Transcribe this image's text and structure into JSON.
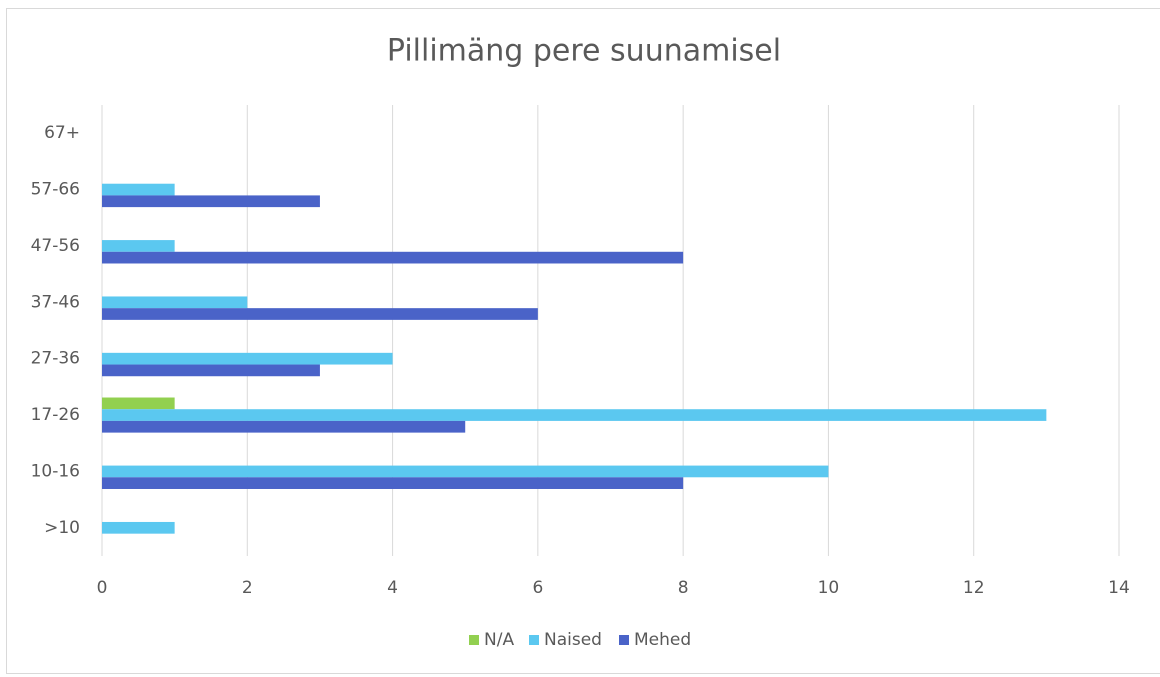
{
  "chart_data": {
    "type": "hbar",
    "title": "Pillimäng pere suunamisel",
    "categories": [
      ">10",
      "10-16",
      "17-26",
      "27-36",
      "37-46",
      "47-56",
      "57-66",
      "67+"
    ],
    "series": [
      {
        "name": "N/A",
        "color": "#92d050",
        "values": [
          0,
          0,
          1,
          0,
          0,
          0,
          0,
          0
        ]
      },
      {
        "name": "Naised",
        "color": "#5bc8f0",
        "values": [
          1,
          10,
          13,
          4,
          2,
          1,
          1,
          0
        ]
      },
      {
        "name": "Mehed",
        "color": "#4a63c8",
        "values": [
          0,
          8,
          5,
          3,
          6,
          8,
          3,
          0
        ]
      }
    ],
    "xlim": [
      0,
      14
    ],
    "xticks": [
      0,
      2,
      4,
      6,
      8,
      10,
      12,
      14
    ],
    "grid": true,
    "legend": "bottom"
  }
}
